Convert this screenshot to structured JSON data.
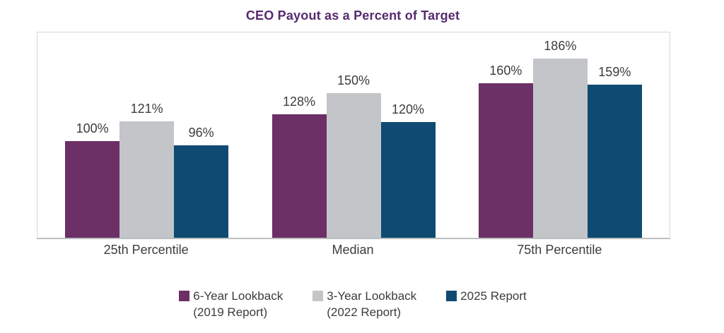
{
  "chart_data": {
    "type": "bar",
    "title": "CEO Payout as a Percent of Target",
    "categories": [
      "25th Percentile",
      "Median",
      "75th Percentile"
    ],
    "series": [
      {
        "name": "6-Year Lookback (2019 Report)",
        "legend_lines": [
          "6-Year Lookback",
          "(2019 Report)"
        ],
        "color": "#6C2F66",
        "values": [
          100,
          128,
          160
        ]
      },
      {
        "name": "3-Year Lookback (2022 Report)",
        "legend_lines": [
          "3-Year Lookback",
          "(2022 Report)"
        ],
        "color": "#C3C5C8",
        "values": [
          121,
          150,
          186
        ]
      },
      {
        "name": "2025 Report",
        "legend_lines": [
          "2025 Report"
        ],
        "color": "#0F4A72",
        "values": [
          96,
          120,
          159
        ]
      }
    ],
    "value_suffix": "%",
    "xlabel": "",
    "ylabel": "",
    "ylim": [
      0,
      213
    ],
    "grid": false,
    "y_axis_ticks_visible": false,
    "legend_position": "bottom"
  },
  "colors": {
    "title_text": "#552A6E",
    "label_text": "#3C3C3C",
    "plot_border": "#D7D7D7",
    "baseline": "#BCBFC1",
    "background": "#FFFFFF"
  }
}
